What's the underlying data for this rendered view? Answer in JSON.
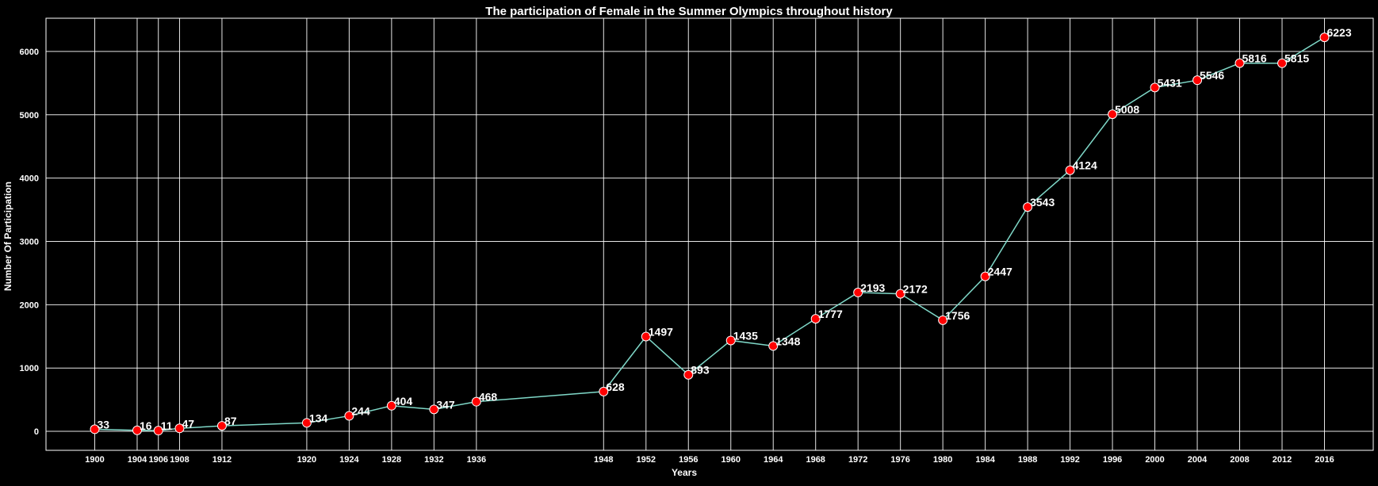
{
  "chart_data": {
    "type": "line",
    "title": "The participation of Female in the Summer Olympics throughout history",
    "xlabel": "Years",
    "ylabel": "Number Of Participation",
    "x": [
      1900,
      1904,
      1906,
      1908,
      1912,
      1920,
      1924,
      1928,
      1932,
      1936,
      1948,
      1952,
      1956,
      1960,
      1964,
      1968,
      1972,
      1976,
      1980,
      1984,
      1988,
      1992,
      1996,
      2000,
      2004,
      2008,
      2012,
      2016
    ],
    "x_tick_labels": [
      "1900",
      "1904",
      "1906",
      "1908",
      "1912",
      "1920",
      "1924",
      "1928",
      "1932",
      "1936",
      "1948",
      "1952",
      "1956",
      "1960",
      "1964",
      "1968",
      "1972",
      "1976",
      "1980",
      "1984",
      "1988",
      "1992",
      "1996",
      "2000",
      "2004",
      "2008",
      "2012",
      "2016"
    ],
    "values": [
      33,
      16,
      11,
      47,
      87,
      134,
      244,
      404,
      347,
      468,
      628,
      1497,
      893,
      1435,
      1348,
      1777,
      2193,
      2172,
      1756,
      2447,
      3543,
      4124,
      5008,
      5431,
      5546,
      5816,
      5815,
      6223
    ],
    "data_labels": [
      "33",
      "16",
      "11",
      "47",
      "87",
      "134",
      "244",
      "404",
      "347",
      "468",
      "628",
      "1497",
      "893",
      "1435",
      "1348",
      "1777",
      "2193",
      "2172",
      "1756",
      "2447",
      "3543",
      "4124",
      "5008",
      "5431",
      "5546",
      "5816",
      "5815",
      "6223"
    ],
    "y_ticks": [
      0,
      1000,
      2000,
      3000,
      4000,
      5000,
      6000
    ],
    "y_tick_labels": [
      "0",
      "1000",
      "2000",
      "3000",
      "4000",
      "5000",
      "6000"
    ],
    "xlim": [
      1895.4,
      2020.6
    ],
    "ylim": [
      -300,
      6525
    ],
    "grid": true,
    "line_color": "#7fd8c8",
    "marker_color": "#ff0000",
    "marker_edge_color": "#ffffff",
    "background_color": "#000000"
  }
}
